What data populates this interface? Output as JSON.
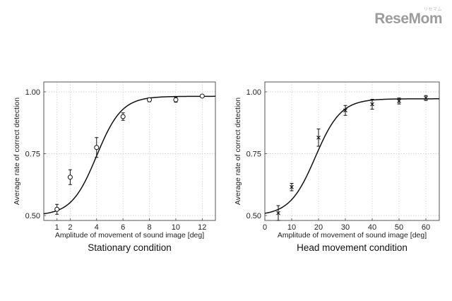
{
  "logo": {
    "tag": "リセマム",
    "text": "ReseMom"
  },
  "chart_data": [
    {
      "type": "line",
      "title": "",
      "caption": "Stationary condition",
      "xlabel": "Amplitude of movement of sound image [deg]",
      "ylabel": "Average rate of correct detection",
      "xlim": [
        0,
        13
      ],
      "ylim": [
        0.48,
        1.04
      ],
      "x_ticks": [
        1,
        2,
        4,
        6,
        8,
        10,
        12
      ],
      "y_ticks": [
        0.5,
        0.75,
        1.0
      ],
      "y_tick_labels": [
        "0.50",
        "0.75",
        "1.00"
      ],
      "grid": true,
      "marker": "circle",
      "points": [
        {
          "x": 1,
          "y": 0.525,
          "err": 0.02
        },
        {
          "x": 2,
          "y": 0.655,
          "err": 0.03
        },
        {
          "x": 4,
          "y": 0.775,
          "err": 0.04
        },
        {
          "x": 6,
          "y": 0.9,
          "err": 0.015
        },
        {
          "x": 8,
          "y": 0.968,
          "err": 0.008
        },
        {
          "x": 10,
          "y": 0.968,
          "err": 0.01
        },
        {
          "x": 12,
          "y": 0.983,
          "err": 0.005
        }
      ],
      "fit": {
        "kind": "sigmoid",
        "lower": 0.5,
        "upper": 0.982,
        "midpoint": 4.0,
        "slope": 1.05
      }
    },
    {
      "type": "line",
      "title": "",
      "caption": "Head movement condition",
      "xlabel": "Amplitude of movement of sound image [deg]",
      "ylabel": "Average rate of correct detection",
      "xlim": [
        0,
        65
      ],
      "ylim": [
        0.48,
        1.04
      ],
      "x_ticks": [
        0,
        10,
        20,
        30,
        40,
        50,
        60
      ],
      "y_ticks": [
        0.5,
        0.75,
        1.0
      ],
      "y_tick_labels": [
        "0.50",
        "0.75",
        "1.00"
      ],
      "grid": true,
      "marker": "cross",
      "points": [
        {
          "x": 5,
          "y": 0.51,
          "err": 0.03
        },
        {
          "x": 10,
          "y": 0.615,
          "err": 0.015
        },
        {
          "x": 20,
          "y": 0.815,
          "err": 0.035
        },
        {
          "x": 30,
          "y": 0.925,
          "err": 0.02
        },
        {
          "x": 40,
          "y": 0.95,
          "err": 0.02
        },
        {
          "x": 50,
          "y": 0.963,
          "err": 0.012
        },
        {
          "x": 60,
          "y": 0.975,
          "err": 0.01
        }
      ],
      "fit": {
        "kind": "sigmoid",
        "lower": 0.5,
        "upper": 0.972,
        "midpoint": 18.8,
        "slope": 0.21
      }
    }
  ]
}
